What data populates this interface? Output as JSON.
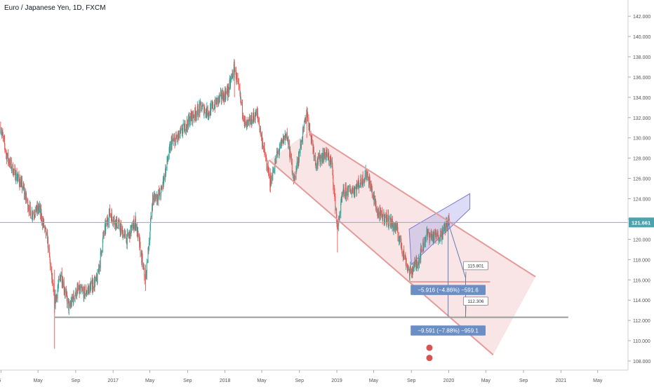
{
  "chart_data": {
    "type": "candlestick",
    "title": "Euro / Japanese Yen, 1D, FXCM",
    "y_axis": {
      "ticks": [
        "142.000",
        "140.000",
        "138.000",
        "136.000",
        "134.000",
        "132.000",
        "130.000",
        "128.000",
        "126.000",
        "124.000",
        "122.000",
        "120.000",
        "118.000",
        "116.000",
        "114.000",
        "112.000",
        "110.000",
        "108.000"
      ],
      "range": [
        107.1,
        143.6
      ]
    },
    "x_axis": {
      "ticks": [
        "2016",
        "May",
        "Sep",
        "2017",
        "May",
        "Sep",
        "2018",
        "May",
        "Sep",
        "2019",
        "May",
        "Sep",
        "2020",
        "May",
        "Sep",
        "2021",
        "May"
      ],
      "range": [
        "2015-12-29",
        "2021-08-08"
      ]
    },
    "current_price": "121.661",
    "price_series": [
      {
        "date": "2015-12-31",
        "close": 131.1
      },
      {
        "date": "2016-01-20",
        "close": 128.2
      },
      {
        "date": "2016-02-15",
        "close": 126.5
      },
      {
        "date": "2016-03-10",
        "close": 125.3
      },
      {
        "date": "2016-04-08",
        "close": 122.5
      },
      {
        "date": "2016-05-05",
        "close": 123.0
      },
      {
        "date": "2016-06-01",
        "close": 120.0
      },
      {
        "date": "2016-06-24",
        "close": 113.7
      },
      {
        "date": "2016-07-15",
        "close": 116.6
      },
      {
        "date": "2016-08-10",
        "close": 113.2
      },
      {
        "date": "2016-09-05",
        "close": 115.0
      },
      {
        "date": "2016-10-01",
        "close": 114.7
      },
      {
        "date": "2016-11-10",
        "close": 116.0
      },
      {
        "date": "2016-12-01",
        "close": 120.5
      },
      {
        "date": "2016-12-20",
        "close": 122.6
      },
      {
        "date": "2017-01-15",
        "close": 121.5
      },
      {
        "date": "2017-02-15",
        "close": 120.0
      },
      {
        "date": "2017-03-15",
        "close": 121.8
      },
      {
        "date": "2017-04-17",
        "close": 115.8
      },
      {
        "date": "2017-05-10",
        "close": 124.0
      },
      {
        "date": "2017-06-05",
        "close": 124.5
      },
      {
        "date": "2017-07-10",
        "close": 129.5
      },
      {
        "date": "2017-08-05",
        "close": 130.2
      },
      {
        "date": "2017-09-10",
        "close": 132.0
      },
      {
        "date": "2017-10-15",
        "close": 133.0
      },
      {
        "date": "2017-11-10",
        "close": 132.5
      },
      {
        "date": "2017-12-10",
        "close": 133.8
      },
      {
        "date": "2018-01-10",
        "close": 134.5
      },
      {
        "date": "2018-02-01",
        "close": 137.0
      },
      {
        "date": "2018-03-10",
        "close": 131.0
      },
      {
        "date": "2018-04-15",
        "close": 132.5
      },
      {
        "date": "2018-05-29",
        "close": 125.5
      },
      {
        "date": "2018-06-20",
        "close": 128.3
      },
      {
        "date": "2018-07-20",
        "close": 130.5
      },
      {
        "date": "2018-08-15",
        "close": 125.8
      },
      {
        "date": "2018-09-25",
        "close": 132.5
      },
      {
        "date": "2018-10-25",
        "close": 127.5
      },
      {
        "date": "2018-11-25",
        "close": 128.5
      },
      {
        "date": "2018-12-15",
        "close": 127.5
      },
      {
        "date": "2019-01-03",
        "close": 121.0
      },
      {
        "date": "2019-01-20",
        "close": 124.5
      },
      {
        "date": "2019-03-01",
        "close": 125.0
      },
      {
        "date": "2019-04-10",
        "close": 126.5
      },
      {
        "date": "2019-05-15",
        "close": 122.5
      },
      {
        "date": "2019-06-15",
        "close": 122.0
      },
      {
        "date": "2019-07-15",
        "close": 121.0
      },
      {
        "date": "2019-08-26",
        "close": 116.6
      },
      {
        "date": "2019-09-25",
        "close": 118.0
      },
      {
        "date": "2019-10-20",
        "close": 120.5
      },
      {
        "date": "2019-11-15",
        "close": 120.2
      },
      {
        "date": "2019-12-10",
        "close": 120.5
      },
      {
        "date": "2019-12-30",
        "close": 121.9
      },
      {
        "date": "2020-01-03",
        "close": 121.661
      }
    ],
    "drawings": {
      "descending_channel": {
        "upper_line": [
          {
            "date": "2018-10-01",
            "price": 130.6
          },
          {
            "date": "2020-10-10",
            "price": 116.3
          }
        ],
        "lower_line": [
          {
            "date": "2018-05-25",
            "price": 127.8
          },
          {
            "date": "2020-05-25",
            "price": 108.6
          }
        ]
      },
      "rising_wedge": {
        "upper_line": [
          {
            "date": "2019-08-25",
            "price": 121.0
          },
          {
            "date": "2020-03-10",
            "price": 124.5
          }
        ],
        "lower_line": [
          {
            "date": "2019-09-01",
            "price": 117.5
          },
          {
            "date": "2020-03-10",
            "price": 123.0
          }
        ]
      },
      "horizontal_levels": [
        {
          "price": 115.801,
          "label": "115.801",
          "color": "#e8a3a3"
        },
        {
          "price": 112.306,
          "label": "112.306",
          "color": "#a0a0a0"
        },
        {
          "price": 121.661,
          "label": "121.661",
          "color": "#74b8bf"
        }
      ],
      "measurements": [
        {
          "label": "−5.916 (−4.86%) −591.6",
          "color": "#6b8fc5"
        },
        {
          "label": "−9.591 (−7.88%) −959.1",
          "color": "#6b8fc5"
        }
      ]
    },
    "colors": {
      "up": "#26a69a",
      "down": "#ef5350",
      "channel": "#e8a3a3",
      "wedge": "#9c9ce6",
      "axis_text": "#555555"
    },
    "legend_position": "none",
    "grid": false
  }
}
